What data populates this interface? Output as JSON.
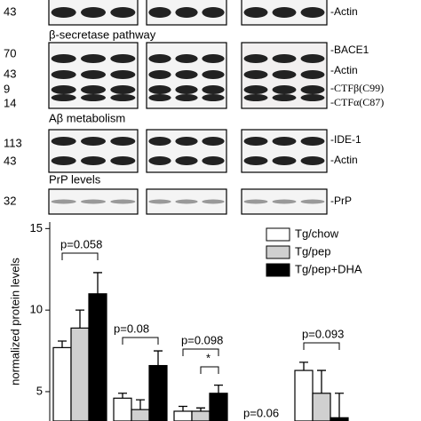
{
  "blot_sections": [
    {
      "markers": [
        "43"
      ],
      "proteins": [
        "-Actin"
      ]
    },
    {
      "title": "β-secretase pathway",
      "markers": [
        "70",
        "43",
        "9",
        "14"
      ],
      "proteins": [
        "-BACE1",
        "-Actin",
        "-CTFβ(C99)",
        "-CTFα(C87)"
      ]
    },
    {
      "title": "Aβ metabolism",
      "markers": [
        "113",
        "43"
      ],
      "proteins": [
        "-IDE-1",
        "-Actin"
      ]
    },
    {
      "title": "PrP levels",
      "markers": [
        "32"
      ],
      "proteins": [
        "-PrP"
      ]
    }
  ],
  "chart_data": {
    "type": "bar",
    "y_label": "normalized protein levels",
    "categories": [
      null,
      null,
      null,
      null,
      null
    ],
    "series": [
      {
        "name": "Tg/chow",
        "color": "#ffffff",
        "values": [
          7.7,
          4.6,
          3.8,
          null,
          6.3
        ],
        "errors": [
          0.4,
          0.3,
          0.3,
          null,
          0.5
        ]
      },
      {
        "name": "Tg/pep",
        "color": "#d0d0d0",
        "values": [
          8.9,
          3.9,
          3.8,
          null,
          4.9
        ],
        "errors": [
          1.1,
          0.6,
          0.2,
          null,
          1.4
        ]
      },
      {
        "name": "Tg/pep+DHA",
        "color": "#000000",
        "values": [
          11.0,
          6.6,
          4.9,
          null,
          3.4
        ],
        "errors": [
          1.3,
          0.9,
          0.5,
          null,
          1.5
        ]
      }
    ],
    "annotations": [
      "p=0.058",
      "p=0.08",
      "p=0.098",
      "*",
      "p=0.06",
      "p=0.093"
    ],
    "ylim": [
      3.2,
      15.4
    ],
    "yticks": [
      5,
      10,
      15
    ],
    "legend": "top-right"
  }
}
